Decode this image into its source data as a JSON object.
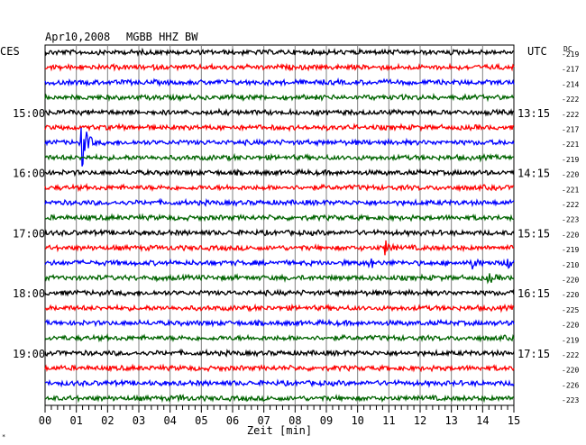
{
  "header": {
    "date": "Apr10,2008",
    "station": "MGBB HHZ BW",
    "left_zone": "CES",
    "right_zone": "UTC",
    "dc_label": "DC"
  },
  "chart_data": {
    "type": "line",
    "title": "Apr10,2008   MGBB HHZ BW",
    "xlabel": "Zeit [min]",
    "x_ticks": [
      "00",
      "01",
      "02",
      "03",
      "04",
      "05",
      "06",
      "07",
      "08",
      "09",
      "10",
      "11",
      "12",
      "13",
      "14",
      "15"
    ],
    "xlim": [
      0,
      15
    ],
    "grid": true,
    "minutes_per_line": 15,
    "trace_colors": [
      "#000000",
      "#ff0000",
      "#0000ff",
      "#006400"
    ],
    "left_time_labels": [
      {
        "line": 4,
        "label": "15:00"
      },
      {
        "line": 8,
        "label": "16:00"
      },
      {
        "line": 12,
        "label": "17:00"
      },
      {
        "line": 16,
        "label": "18:00"
      },
      {
        "line": 20,
        "label": "19:00"
      }
    ],
    "right_time_labels": [
      {
        "line": 4,
        "label": "13:15"
      },
      {
        "line": 8,
        "label": "14:15"
      },
      {
        "line": 12,
        "label": "15:15"
      },
      {
        "line": 16,
        "label": "16:15"
      },
      {
        "line": 20,
        "label": "17:15"
      }
    ],
    "dc_offsets": [
      "-219",
      "-217",
      "-214",
      "-222",
      "-222",
      "-217",
      "-221",
      "-219",
      "-220",
      "-221",
      "-222",
      "-223",
      "-220",
      "-219",
      "-210",
      "-220",
      "-220",
      "-225",
      "-220",
      "-219",
      "-222",
      "-220",
      "-226",
      "-223"
    ],
    "events": [
      {
        "line": 6,
        "minute": 1.2,
        "amplitude": 1.0
      },
      {
        "line": 13,
        "minute": 10.9,
        "amplitude": 0.25
      },
      {
        "line": 14,
        "minute": 10.4,
        "amplitude": 0.18
      },
      {
        "line": 14,
        "minute": 13.7,
        "amplitude": 0.2
      },
      {
        "line": 14,
        "minute": 14.8,
        "amplitude": 0.35
      },
      {
        "line": 15,
        "minute": 14.2,
        "amplitude": 0.15
      },
      {
        "line": 23,
        "minute": 4.3,
        "amplitude": 0.12
      }
    ]
  }
}
